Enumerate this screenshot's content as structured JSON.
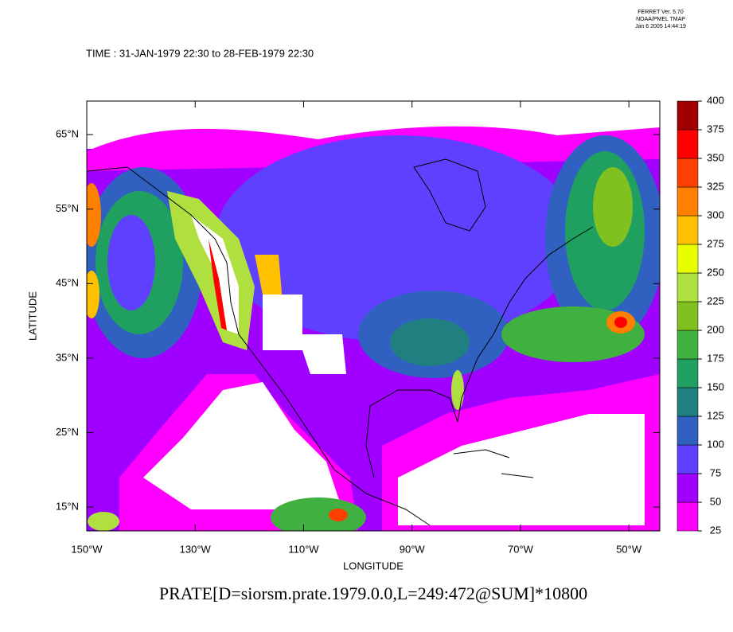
{
  "header": {
    "lines": [
      "FERRET Ver. 5.70",
      "NOAA/PMEL TMAP",
      "Jan  6 2005 14:44:19"
    ]
  },
  "chart_data": {
    "type": "shaded-map",
    "title": "TIME : 31-JAN-1979 22:30 to 28-FEB-1979 22:30",
    "x_label": "LONGITUDE",
    "y_label": "LATITUDE",
    "caption": "PRATE[D=siorsm.prate.1979.0.0,L=249:472@SUM]*10800",
    "xlim": [
      -150,
      -44.3
    ],
    "ylim": [
      11.8,
      69.5
    ],
    "xticks": [
      {
        "value": -150,
        "label": "150°W"
      },
      {
        "value": -130,
        "label": "130°W"
      },
      {
        "value": -110,
        "label": "110°W"
      },
      {
        "value": -90,
        "label": "90°W"
      },
      {
        "value": -70,
        "label": "70°W"
      },
      {
        "value": -50,
        "label": "50°W"
      }
    ],
    "yticks": [
      {
        "value": 15,
        "label": "15°N"
      },
      {
        "value": 25,
        "label": "25°N"
      },
      {
        "value": 35,
        "label": "35°N"
      },
      {
        "value": 45,
        "label": "45°N"
      },
      {
        "value": 55,
        "label": "55°N"
      },
      {
        "value": 65,
        "label": "65°N"
      }
    ],
    "levels": [
      25,
      50,
      75,
      100,
      125,
      150,
      175,
      200,
      225,
      250,
      275,
      300,
      325,
      350,
      375,
      400
    ],
    "colors": [
      "#ff00ff",
      "#a000ff",
      "#6040ff",
      "#3060c0",
      "#208080",
      "#20a060",
      "#40b040",
      "#80c020",
      "#b0e040",
      "#e8ff00",
      "#ffc000",
      "#ff8000",
      "#ff4000",
      "#ff0000",
      "#a00000"
    ]
  }
}
